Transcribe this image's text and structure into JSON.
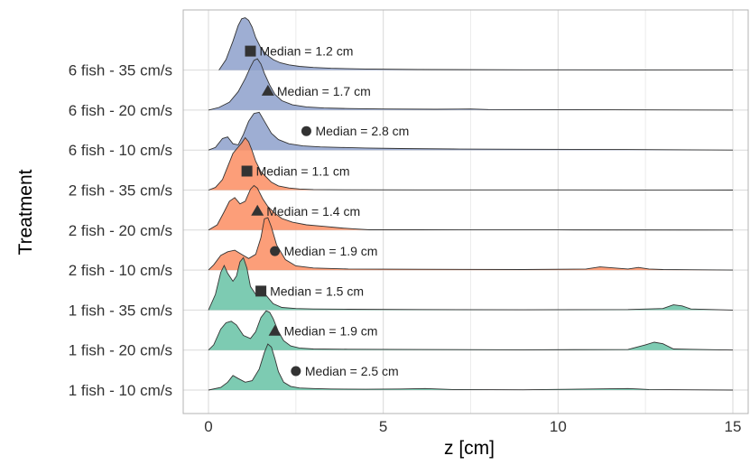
{
  "chart_data": {
    "type": "ridgeline",
    "xlabel": "z [cm]",
    "ylabel": "Treatment",
    "xlim": [
      -0.7,
      15.5
    ],
    "x_ticks": [
      0,
      5,
      10,
      15
    ],
    "grid": true,
    "colors": {
      "1 fish": "#66c2a5",
      "2 fish": "#fc8d62",
      "6 fish": "#8da0cb"
    },
    "series": [
      {
        "name": "1 fish - 10 cm/s",
        "group": "1 fish",
        "median": 2.5,
        "median_label": "Median = 2.5 cm",
        "marker": "circle",
        "x": [
          0,
          0.35,
          0.55,
          0.7,
          0.85,
          1.05,
          1.25,
          1.45,
          1.6,
          1.7,
          1.8,
          1.9,
          2.0,
          2.15,
          2.35,
          2.6,
          3.0,
          3.5,
          4.5,
          5.5,
          6.2,
          7.0,
          9.0,
          12.0,
          12.3,
          12.6,
          15.0
        ],
        "density": [
          0,
          0.05,
          0.15,
          0.28,
          0.22,
          0.15,
          0.18,
          0.4,
          0.72,
          0.88,
          0.82,
          0.6,
          0.35,
          0.15,
          0.07,
          0.04,
          0.03,
          0.02,
          0.015,
          0.02,
          0.03,
          0.01,
          0.005,
          0.03,
          0.02,
          0.01,
          0
        ]
      },
      {
        "name": "1 fish - 20 cm/s",
        "group": "1 fish",
        "median": 1.9,
        "median_label": "Median = 1.9 cm",
        "marker": "triangle",
        "x": [
          0,
          0.15,
          0.35,
          0.5,
          0.65,
          0.8,
          1.0,
          1.2,
          1.35,
          1.5,
          1.65,
          1.75,
          1.85,
          2.0,
          2.15,
          2.35,
          2.6,
          3.0,
          4.0,
          6.0,
          9.0,
          12.0,
          12.5,
          12.75,
          13.0,
          13.3,
          15.0
        ],
        "density": [
          0,
          0.1,
          0.4,
          0.52,
          0.55,
          0.48,
          0.28,
          0.22,
          0.35,
          0.62,
          0.75,
          0.72,
          0.6,
          0.35,
          0.18,
          0.08,
          0.04,
          0.02,
          0.015,
          0.01,
          0.005,
          0.01,
          0.1,
          0.15,
          0.12,
          0.02,
          0
        ]
      },
      {
        "name": "1 fish - 35 cm/s",
        "group": "1 fish",
        "median": 1.5,
        "median_label": "Median = 1.5 cm",
        "marker": "square",
        "x": [
          0,
          0.2,
          0.35,
          0.45,
          0.55,
          0.7,
          0.8,
          0.9,
          1.0,
          1.1,
          1.2,
          1.35,
          1.5,
          1.65,
          1.85,
          2.1,
          2.5,
          3.0,
          4.0,
          6.0,
          9.0,
          12.0,
          13.0,
          13.3,
          13.55,
          13.8,
          15.0
        ],
        "density": [
          0,
          0.3,
          0.72,
          0.85,
          0.7,
          0.55,
          0.65,
          0.92,
          1.0,
          0.8,
          0.45,
          0.3,
          0.38,
          0.28,
          0.12,
          0.05,
          0.03,
          0.02,
          0.015,
          0.01,
          0.005,
          0.01,
          0.03,
          0.1,
          0.08,
          0.02,
          0
        ]
      },
      {
        "name": "2 fish - 10 cm/s",
        "group": "2 fish",
        "median": 1.9,
        "median_label": "Median = 1.9 cm",
        "marker": "circle",
        "x": [
          0,
          0.15,
          0.35,
          0.55,
          0.75,
          0.95,
          1.15,
          1.35,
          1.5,
          1.6,
          1.7,
          1.8,
          1.95,
          2.2,
          2.5,
          3.0,
          4.0,
          6.0,
          9.0,
          10.8,
          11.2,
          12.0,
          12.3,
          12.6,
          13.0,
          15.0
        ],
        "density": [
          0,
          0.1,
          0.28,
          0.35,
          0.38,
          0.3,
          0.22,
          0.3,
          0.62,
          0.98,
          1.0,
          0.82,
          0.48,
          0.2,
          0.08,
          0.04,
          0.02,
          0.015,
          0.01,
          0.02,
          0.06,
          0.02,
          0.05,
          0.02,
          0.01,
          0
        ]
      },
      {
        "name": "2 fish - 20 cm/s",
        "group": "2 fish",
        "median": 1.4,
        "median_label": "Median = 1.4 cm",
        "marker": "triangle",
        "x": [
          0,
          0.25,
          0.45,
          0.6,
          0.75,
          0.9,
          1.05,
          1.2,
          1.3,
          1.4,
          1.55,
          1.7,
          1.9,
          2.1,
          2.4,
          2.8,
          3.3,
          3.8,
          4.2,
          4.6,
          6.0,
          8.0,
          10.0,
          15.0
        ],
        "density": [
          0,
          0.1,
          0.35,
          0.55,
          0.62,
          0.5,
          0.55,
          0.78,
          0.85,
          0.8,
          0.6,
          0.45,
          0.32,
          0.22,
          0.15,
          0.1,
          0.07,
          0.04,
          0.02,
          0.005,
          0.005,
          0.003,
          0.003,
          0
        ]
      },
      {
        "name": "2 fish - 35 cm/s",
        "group": "2 fish",
        "median": 1.1,
        "median_label": "Median = 1.1 cm",
        "marker": "square",
        "x": [
          0,
          0.2,
          0.4,
          0.55,
          0.7,
          0.85,
          0.95,
          1.05,
          1.15,
          1.25,
          1.35,
          1.5,
          1.65,
          1.8,
          2.0,
          2.3,
          2.6,
          3.0,
          4.0,
          6.0,
          9.0,
          12.0,
          15.0
        ],
        "density": [
          0,
          0.05,
          0.2,
          0.45,
          0.7,
          0.82,
          0.9,
          1.0,
          0.92,
          0.75,
          0.55,
          0.35,
          0.25,
          0.15,
          0.08,
          0.04,
          0.02,
          0.01,
          0.005,
          0.003,
          0.003,
          0.002,
          0
        ]
      },
      {
        "name": "6 fish - 10 cm/s",
        "group": "6 fish",
        "median": 2.8,
        "median_label": "Median = 2.8 cm",
        "marker": "circle",
        "x": [
          0,
          0.2,
          0.4,
          0.55,
          0.7,
          0.85,
          1.0,
          1.15,
          1.3,
          1.45,
          1.6,
          1.8,
          2.0,
          2.3,
          2.7,
          3.2,
          3.8,
          4.5,
          5.5,
          7.0,
          9.0,
          12.0,
          15.0
        ],
        "density": [
          0,
          0.05,
          0.22,
          0.25,
          0.12,
          0.1,
          0.3,
          0.55,
          0.7,
          0.72,
          0.55,
          0.32,
          0.2,
          0.12,
          0.08,
          0.06,
          0.05,
          0.04,
          0.03,
          0.02,
          0.015,
          0.01,
          0
        ]
      },
      {
        "name": "6 fish - 20 cm/s",
        "group": "6 fish",
        "median": 1.7,
        "median_label": "Median = 1.7 cm",
        "marker": "triangle",
        "x": [
          0,
          0.3,
          0.6,
          0.85,
          1.05,
          1.2,
          1.3,
          1.4,
          1.5,
          1.6,
          1.75,
          1.9,
          2.1,
          2.4,
          2.8,
          3.3,
          4.0,
          5.0,
          6.5,
          7.5,
          8.0,
          10.0,
          15.0
        ],
        "density": [
          0,
          0.05,
          0.15,
          0.35,
          0.6,
          0.82,
          0.95,
          0.98,
          0.88,
          0.7,
          0.48,
          0.3,
          0.18,
          0.1,
          0.06,
          0.04,
          0.03,
          0.02,
          0.015,
          0.02,
          0.01,
          0.008,
          0
        ]
      },
      {
        "name": "6 fish - 35 cm/s",
        "group": "6 fish",
        "median": 1.2,
        "median_label": "Median = 1.2 cm",
        "marker": "square",
        "x": [
          0.3,
          0.5,
          0.7,
          0.85,
          0.95,
          1.05,
          1.15,
          1.25,
          1.35,
          1.5,
          1.65,
          1.85,
          2.05,
          2.3,
          2.6,
          3.0,
          3.5,
          4.5,
          6.0,
          9.0,
          12.0,
          15.0
        ],
        "density": [
          0,
          0.2,
          0.55,
          0.85,
          0.98,
          1.0,
          0.95,
          0.82,
          0.62,
          0.42,
          0.3,
          0.2,
          0.14,
          0.1,
          0.07,
          0.05,
          0.035,
          0.02,
          0.01,
          0.005,
          0.003,
          0
        ]
      }
    ]
  }
}
